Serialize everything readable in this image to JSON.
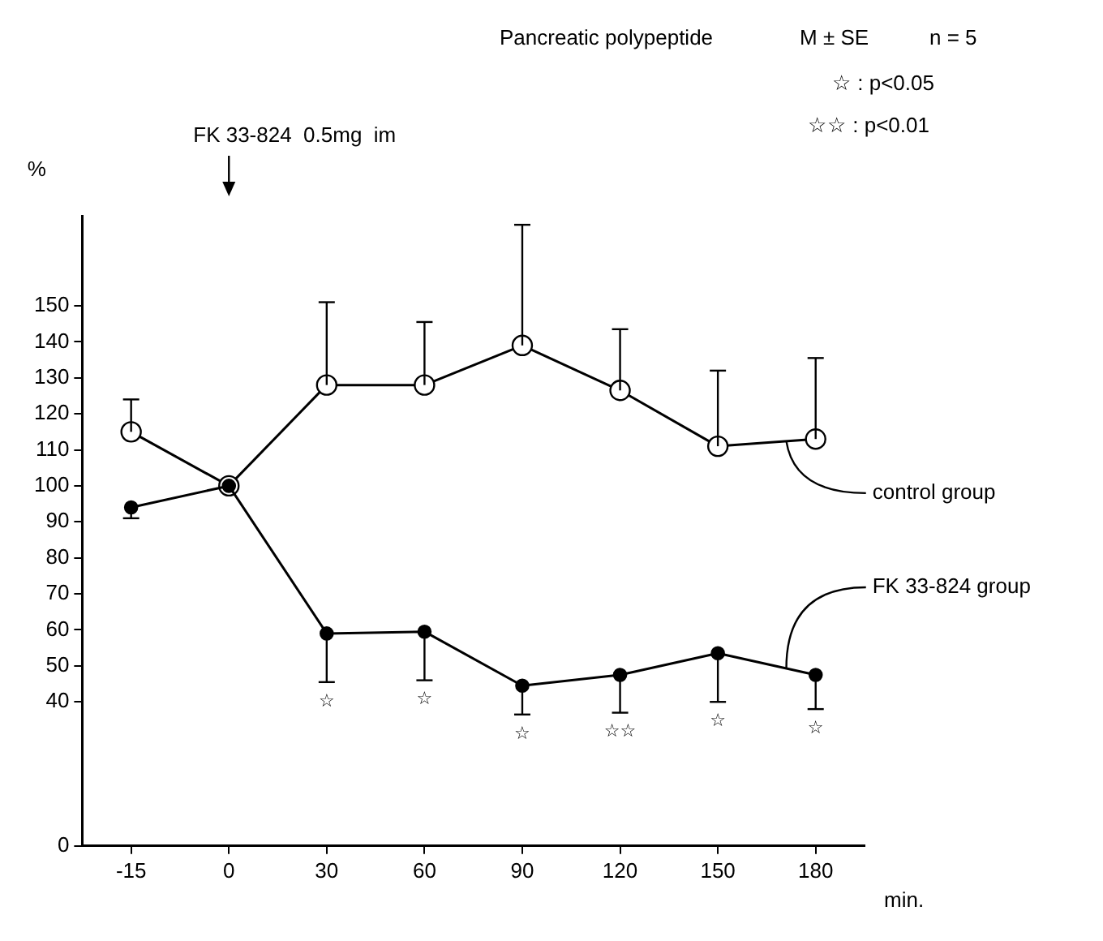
{
  "chart_data": {
    "type": "line",
    "title": "Pancreatic polypeptide",
    "xlabel": "min.",
    "ylabel": "%",
    "categories": [
      "-15",
      "0",
      "30",
      "60",
      "90",
      "120",
      "150",
      "180"
    ],
    "series": [
      {
        "name": "control group",
        "color": "#000000",
        "values": [
          115,
          100,
          128,
          128,
          139,
          126.5,
          111,
          113
        ],
        "errors": [
          [
            115,
            124
          ],
          null,
          [
            128,
            151
          ],
          [
            128,
            145.5
          ],
          [
            139,
            172.5
          ],
          [
            126.5,
            143.5
          ],
          [
            111,
            132
          ],
          [
            113,
            135.5
          ]
        ]
      },
      {
        "name": "FK 33-824 group",
        "color": "#000000",
        "values": [
          94,
          100,
          59,
          59.5,
          44.5,
          47.5,
          53.5,
          47.5
        ],
        "errors": [
          [
            91,
            94
          ],
          null,
          [
            45.5,
            59
          ],
          [
            46,
            59.5
          ],
          [
            36.5,
            44.5
          ],
          [
            37,
            47.5
          ],
          [
            40,
            53.5
          ],
          [
            38,
            47.5
          ]
        ]
      }
    ],
    "ylim": [
      0,
      175
    ],
    "yticks": [
      0,
      40,
      50,
      60,
      70,
      80,
      90,
      100,
      110,
      120,
      130,
      140,
      150
    ],
    "marker": "circle",
    "line_style": "solid",
    "grid": false,
    "legend": false,
    "annotations": [
      "M ± SE",
      "n = 5",
      "☆ : p<0.05",
      "☆☆ : p<0.01",
      "FK 33-824  0.5mg  im",
      "☆",
      "☆",
      "☆",
      "☆☆",
      "☆",
      "☆"
    ]
  }
}
